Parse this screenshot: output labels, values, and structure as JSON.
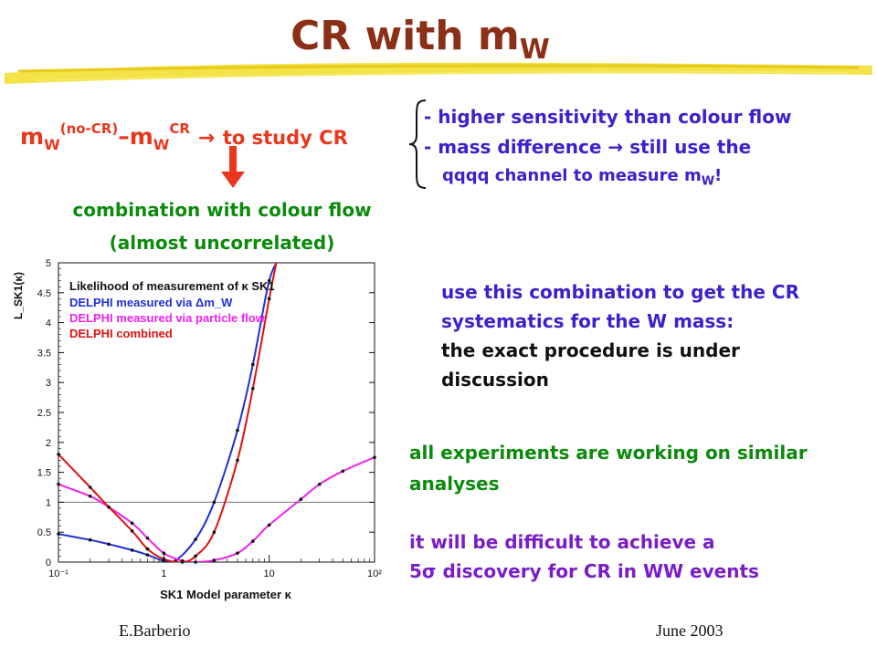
{
  "title": {
    "main": "CR with m",
    "sub": "W"
  },
  "formula": {
    "m1": "m",
    "w1": "W",
    "nocr": "(no-CR)",
    "dash": "–",
    "m2": "m",
    "w2": "W",
    "cr": "CR",
    "arrow": "→",
    "text": "to study CR"
  },
  "bullets": {
    "b1": "- higher sensitivity than colour flow",
    "b2_a": "- mass difference",
    "b2_arrow": "→",
    "b2_b": "still use the",
    "b3_a": "qqqq channel to measure m",
    "b3_sub": "W",
    "b3_c": "!"
  },
  "combination": {
    "line1": "combination with colour flow",
    "line2": "(almost uncorrelated)"
  },
  "note_blue": {
    "line1": "use this combination to get the CR",
    "line2": "systematics for the W mass:"
  },
  "note_black": {
    "line1": "the exact procedure is under",
    "line2": "discussion"
  },
  "note_green": {
    "line1": "all experiments are working on similar",
    "line2": "analyses"
  },
  "note_purple": {
    "line1": "it will be difficult to achieve a",
    "line2_sigma": "5σ",
    "line2": "discovery for CR in WW events"
  },
  "footer": {
    "left": "E.Barberio",
    "right": "June 2003"
  },
  "chart_data": {
    "type": "line",
    "title": "",
    "xlabel": "SK1 Model parameter κ",
    "ylabel": "L_SK1(κ)",
    "xscale": "log",
    "xlim": [
      0.1,
      100
    ],
    "ylim": [
      0,
      5
    ],
    "x_tick_labels": [
      "10⁻¹",
      "1",
      "10",
      "10²"
    ],
    "y_tick_labels": [
      "0",
      "0.5",
      "1",
      "1.5",
      "2",
      "2.5",
      "3",
      "3.5",
      "4",
      "4.5",
      "5"
    ],
    "reference_line_y": 1,
    "legend": {
      "heading": "Likelihood of measurement of κ SK1",
      "placement": "top-left",
      "entries": [
        "DELPHI measured via Δm_W",
        "DELPHI measured via particle flow",
        "DELPHI combined"
      ]
    },
    "series": [
      {
        "name": "DELPHI measured via Δm_W",
        "color": "#1f2fd6",
        "x": [
          0.1,
          0.2,
          0.3,
          0.5,
          0.7,
          1.0,
          1.3,
          2.0,
          3.0,
          5.0,
          7.0,
          10.0,
          13.0
        ],
        "y": [
          0.47,
          0.37,
          0.3,
          0.2,
          0.12,
          0.02,
          0.03,
          0.38,
          1.0,
          2.2,
          3.3,
          4.7,
          5.1
        ]
      },
      {
        "name": "DELPHI measured via particle flow",
        "color": "#ee22ee",
        "x": [
          0.1,
          0.2,
          0.3,
          0.5,
          0.7,
          1.0,
          1.5,
          2.0,
          3.0,
          5.0,
          7.0,
          10.0,
          20.0,
          30.0,
          50.0,
          100.0
        ],
        "y": [
          1.3,
          1.1,
          0.92,
          0.65,
          0.4,
          0.15,
          0.02,
          0.0,
          0.03,
          0.15,
          0.35,
          0.62,
          1.05,
          1.3,
          1.52,
          1.75
        ]
      },
      {
        "name": "DELPHI combined",
        "color": "#e01010",
        "x": [
          0.1,
          0.2,
          0.3,
          0.5,
          0.7,
          1.0,
          1.5,
          2.0,
          3.0,
          5.0,
          7.0,
          10.0,
          12.0
        ],
        "y": [
          1.8,
          1.25,
          0.92,
          0.52,
          0.22,
          0.05,
          0.0,
          0.1,
          0.5,
          1.7,
          2.9,
          4.4,
          5.1
        ]
      }
    ]
  }
}
